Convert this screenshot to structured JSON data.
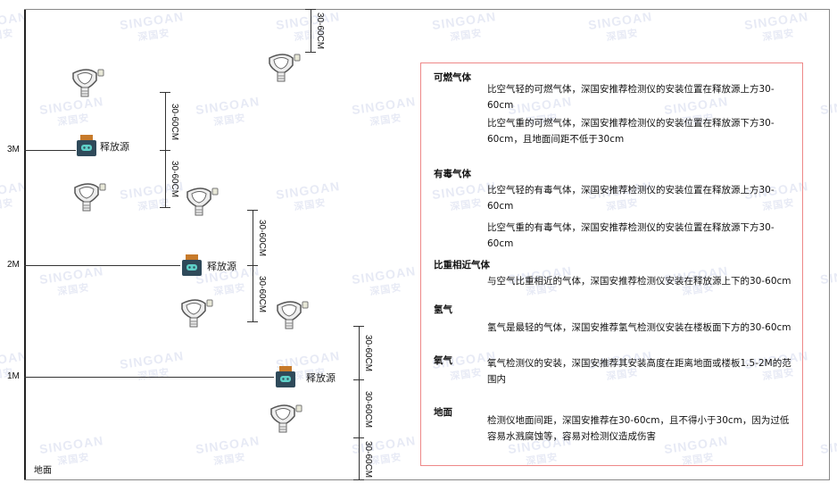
{
  "watermark": {
    "brand": "SINGOAN",
    "cn": "深国安"
  },
  "levels": [
    {
      "label": "3M"
    },
    {
      "label": "2M"
    },
    {
      "label": "1M"
    }
  ],
  "ground_label": "地面",
  "source_label": "释放源",
  "dimension_label": "30-60CM",
  "colors": {
    "box_border": "#e88888",
    "source_body": "#2f4a5a",
    "source_cap": "#c77a2a",
    "source_face": "#5fd0c8"
  },
  "info": {
    "sections": [
      {
        "title": "可燃气体",
        "paras": [
          "比空气轻的可燃气体，深国安推荐检测仪的安装位置在释放源上方30-60cm",
          "比空气重的可燃气体，深国安推荐检测仪的安装位置在释放源下方30-60cm，且地面间距不低于30cm"
        ]
      },
      {
        "title": "有毒气体",
        "paras": [
          "比空气轻的有毒气体，深国安推荐检测仪的安装位置在释放源上方30-60cm",
          "比空气重的有毒气体，深国安推荐检测仪的安装位置在释放源下方30-60cm"
        ]
      },
      {
        "title": "比重相近气体",
        "paras": [
          "与空气比重相近的气体，深国安推荐检测仪安装在释放源上下的30-60cm"
        ]
      },
      {
        "title": "氢气",
        "paras": [
          "氢气是最轻的气体，深国安推荐氢气检测仪安装在楼板面下方的30-60cm"
        ]
      },
      {
        "title": "氧气",
        "paras": [
          "氧气检测仪的安装，深国安推荐其安装高度在距离地面或楼板1.5-2M的范围内"
        ]
      },
      {
        "title": "地面",
        "paras": [
          "检测仪地面间距，深国安推荐在30-60cm，且不得小于30cm，因为过低容易水溅腐蚀等，容易对检测仪造成伤害"
        ]
      }
    ]
  }
}
